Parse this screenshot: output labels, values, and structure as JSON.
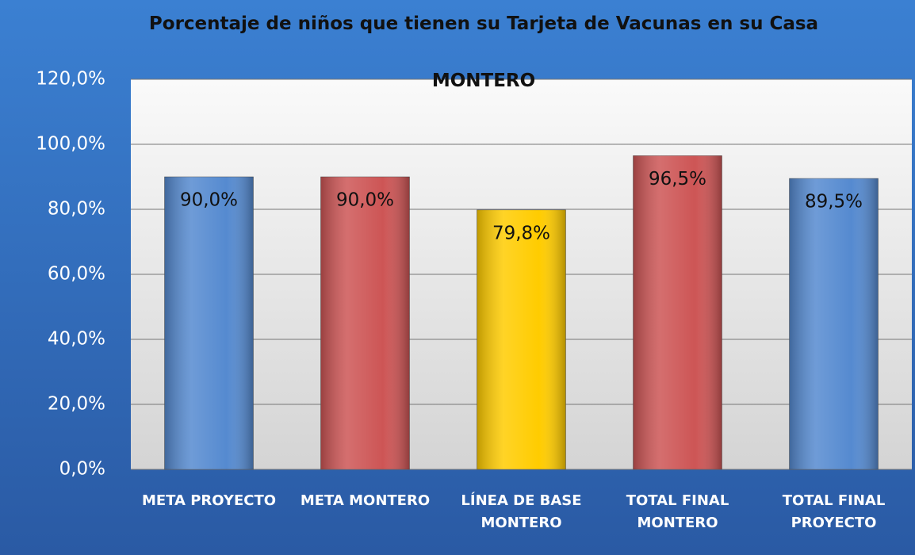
{
  "chart_data": {
    "type": "bar",
    "title": "Porcentaje de niños que tienen su Tarjeta de Vacunas en su Casa",
    "subtitle": "MONTERO",
    "categories": [
      "META PROYECTO",
      "META MONTERO",
      "LÍNEA DE BASE MONTERO",
      "TOTAL FINAL MONTERO",
      "TOTAL FINAL PROYECTO"
    ],
    "values": [
      90.0,
      90.0,
      79.8,
      96.5,
      89.5
    ],
    "value_labels": [
      "90,0%",
      "90,0%",
      "79,8%",
      "96,5%",
      "89,5%"
    ],
    "colors": [
      "#558ad0",
      "#cd5555",
      "#ffcc00",
      "#cd5555",
      "#558ad0"
    ],
    "ylim": [
      0,
      120
    ],
    "yticks": [
      {
        "value": 0,
        "label": "0,0%"
      },
      {
        "value": 20,
        "label": "20,0%"
      },
      {
        "value": 40,
        "label": "40,0%"
      },
      {
        "value": 60,
        "label": "60,0%"
      },
      {
        "value": 80,
        "label": "80,0%"
      },
      {
        "value": 100,
        "label": "100,0%"
      },
      {
        "value": 120,
        "label": "120,0%"
      }
    ],
    "grid": true
  }
}
